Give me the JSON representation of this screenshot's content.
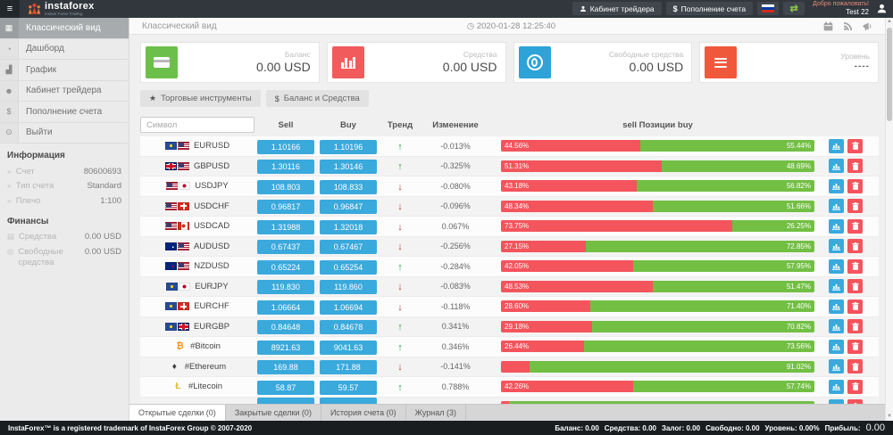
{
  "header": {
    "brand": "instaforex",
    "tagline": "Instant Forex Trading",
    "buttons": {
      "cabinet": "Кабинет трейдера",
      "deposit": "Пополнение счета",
      "deposit_sign": "$"
    },
    "welcome_line1": "Добро пожаловать!",
    "welcome_line2": "Test 22"
  },
  "sidebar": {
    "items": [
      {
        "label": "Классический вид",
        "icon": "classic-view-icon",
        "active": true
      },
      {
        "label": "Дашборд",
        "icon": "dashboard-icon",
        "active": false
      },
      {
        "label": "График",
        "icon": "chart-icon",
        "active": false
      },
      {
        "label": "Кабинет трейдера",
        "icon": "user-icon",
        "active": false
      },
      {
        "label": "Пополнение счета",
        "icon": "dollar-icon",
        "active": false
      },
      {
        "label": "Выйти",
        "icon": "power-icon",
        "active": false
      }
    ],
    "info": {
      "title": "Информация",
      "rows": [
        {
          "label": "Счет",
          "value": "80600693"
        },
        {
          "label": "Тип счета",
          "value": "Standard"
        },
        {
          "label": "Плечо",
          "value": "1:100"
        }
      ]
    },
    "finance": {
      "title": "Финансы",
      "rows": [
        {
          "label": "Средства",
          "value": "0.00 USD",
          "icon": "funds-icon"
        },
        {
          "label": "Свободные средства",
          "value": "0.00 USD",
          "icon": "free-funds-icon"
        }
      ]
    }
  },
  "topbar": {
    "title": "Классический вид",
    "datetime": "2020-01-28 12:25:40"
  },
  "cards": [
    {
      "label": "Баланс",
      "value": "0.00 USD",
      "color": "#6cbf4b",
      "icon": "credit-card-icon"
    },
    {
      "label": "Средства",
      "value": "0.00 USD",
      "color": "#f25b5b",
      "icon": "bar-chart-icon"
    },
    {
      "label": "Свободные средства",
      "value": "0.00 USD",
      "color": "#2da3d8",
      "icon": "coin-icon"
    },
    {
      "label": "Уровень",
      "value": "----",
      "color": "#f0583c",
      "icon": "list-icon"
    }
  ],
  "toolbar": {
    "instruments": "Торговые инструменты",
    "instruments_icon": "★",
    "balance": "Баланс и Средства",
    "balance_icon": "$"
  },
  "table": {
    "search_placeholder": "Символ",
    "headers": {
      "sell": "Sell",
      "buy": "Buy",
      "trend": "Тренд",
      "change": "Изменение",
      "positions": "sell Позиции buy"
    },
    "rows": [
      {
        "symbol": "EURUSD",
        "flags": [
          "eu",
          "us"
        ],
        "sell": "1.10166",
        "buy": "1.10196",
        "trend": "up",
        "change": "-0.013%",
        "sell_pct": "44.56%",
        "buy_pct": "55.44%",
        "sell_width": 44.56,
        "buy_width": 55.44
      },
      {
        "symbol": "GBPUSD",
        "flags": [
          "gb",
          "us"
        ],
        "sell": "1.30116",
        "buy": "1.30146",
        "trend": "up",
        "change": "-0.325%",
        "sell_pct": "51.31%",
        "buy_pct": "48.69%",
        "sell_width": 51.31,
        "buy_width": 48.69
      },
      {
        "symbol": "USDJPY",
        "flags": [
          "us",
          "jp"
        ],
        "sell": "108.803",
        "buy": "108.833",
        "trend": "down",
        "change": "-0.080%",
        "sell_pct": "43.18%",
        "buy_pct": "56.82%",
        "sell_width": 43.18,
        "buy_width": 56.82
      },
      {
        "symbol": "USDCHF",
        "flags": [
          "us",
          "ch"
        ],
        "sell": "0.96817",
        "buy": "0.96847",
        "trend": "down",
        "change": "-0.096%",
        "sell_pct": "48.34%",
        "buy_pct": "51.66%",
        "sell_width": 48.34,
        "buy_width": 51.66
      },
      {
        "symbol": "USDCAD",
        "flags": [
          "us",
          "ca"
        ],
        "sell": "1.31988",
        "buy": "1.32018",
        "trend": "down",
        "change": "0.067%",
        "sell_pct": "73.75%",
        "buy_pct": "26.25%",
        "sell_width": 73.75,
        "buy_width": 26.25
      },
      {
        "symbol": "AUDUSD",
        "flags": [
          "au",
          "us"
        ],
        "sell": "0.67437",
        "buy": "0.67467",
        "trend": "down",
        "change": "-0.256%",
        "sell_pct": "27.15%",
        "buy_pct": "72.85%",
        "sell_width": 27.15,
        "buy_width": 72.85
      },
      {
        "symbol": "NZDUSD",
        "flags": [
          "nz",
          "us"
        ],
        "sell": "0.65224",
        "buy": "0.65254",
        "trend": "up",
        "change": "-0.284%",
        "sell_pct": "42.05%",
        "buy_pct": "57.95%",
        "sell_width": 42.05,
        "buy_width": 57.95
      },
      {
        "symbol": "EURJPY",
        "flags": [
          "eu",
          "jp"
        ],
        "sell": "119.830",
        "buy": "119.860",
        "trend": "down",
        "change": "-0.083%",
        "sell_pct": "48.53%",
        "buy_pct": "51.47%",
        "sell_width": 48.53,
        "buy_width": 51.47
      },
      {
        "symbol": "EURCHF",
        "flags": [
          "eu",
          "ch"
        ],
        "sell": "1.06664",
        "buy": "1.06694",
        "trend": "down",
        "change": "-0.118%",
        "sell_pct": "28.60%",
        "buy_pct": "71.40%",
        "sell_width": 28.6,
        "buy_width": 71.4
      },
      {
        "symbol": "EURGBP",
        "flags": [
          "eu",
          "gb"
        ],
        "sell": "0.84648",
        "buy": "0.84678",
        "trend": "up",
        "change": "0.341%",
        "sell_pct": "29.18%",
        "buy_pct": "70.82%",
        "sell_width": 29.18,
        "buy_width": 70.82
      },
      {
        "symbol": "#Bitcoin",
        "crypto": "₿",
        "crypto_color": "#f7931a",
        "sell": "8921.63",
        "buy": "9041.63",
        "trend": "up",
        "change": "0.346%",
        "sell_pct": "26.44%",
        "buy_pct": "73.56%",
        "sell_width": 26.44,
        "buy_width": 73.56
      },
      {
        "symbol": "#Ethereum",
        "crypto": "♦",
        "crypto_color": "#3c3c3d",
        "sell": "169.88",
        "buy": "171.88",
        "trend": "down",
        "change": "-0.141%",
        "sell_pct": "",
        "buy_pct": "91.02%",
        "sell_width": 8.98,
        "buy_width": 91.02
      },
      {
        "symbol": "#Litecoin",
        "crypto": "Ł",
        "crypto_color": "#e3b930",
        "sell": "58.87",
        "buy": "59.57",
        "trend": "up",
        "change": "0.788%",
        "sell_pct": "42.26%",
        "buy_pct": "57.74%",
        "sell_width": 42.26,
        "buy_width": 57.74
      },
      {
        "symbol": "",
        "crypto": "•",
        "crypto_color": "#3aa9dc",
        "sell": "",
        "buy": "",
        "trend": "",
        "change": "",
        "sell_pct": "",
        "buy_pct": "",
        "sell_width": 2.5,
        "buy_width": 97.5
      }
    ]
  },
  "tabs": [
    {
      "label": "Открытые сделки (0)",
      "active": true
    },
    {
      "label": "Закрытые сделки (0)",
      "active": false
    },
    {
      "label": "История счета (0)",
      "active": false
    },
    {
      "label": "Журнал (3)",
      "active": false
    }
  ],
  "footer": {
    "left": "InstaForex™ is a registered trademark of InstaForex Group © 2007-2020",
    "stats": [
      {
        "label": "Баланс:",
        "value": "0.00"
      },
      {
        "label": "Средства:",
        "value": "0.00"
      },
      {
        "label": "Залог:",
        "value": "0.00"
      },
      {
        "label": "Свободно:",
        "value": "0.00"
      },
      {
        "label": "Уровень:",
        "value": "0.00%"
      },
      {
        "label": "Прибыль:",
        "value": ""
      }
    ],
    "profit": "0.00"
  },
  "colors": {
    "accent_blue": "#3aa9dc",
    "bar_red": "#f4545c",
    "bar_green": "#72bf44",
    "header_dark": "#31373d"
  }
}
